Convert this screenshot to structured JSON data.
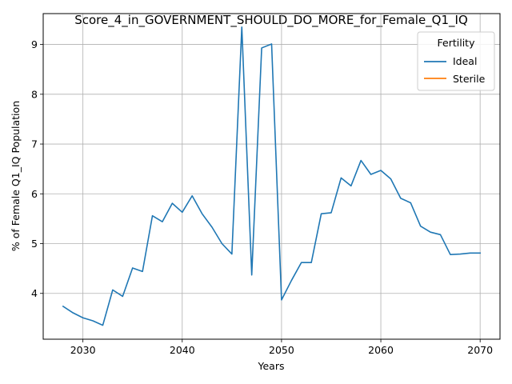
{
  "chart_data": {
    "type": "line",
    "title": "Score_4_in_GOVERNMENT_SHOULD_DO_MORE_for_Female_Q1_IQ",
    "xlabel": "Years",
    "ylabel": "% of Female Q1_IQ Population",
    "xlim": [
      2026,
      2072
    ],
    "ylim": [
      3.08,
      9.62
    ],
    "x_ticks": [
      2030,
      2040,
      2050,
      2060,
      2070
    ],
    "y_ticks": [
      4,
      5,
      6,
      7,
      8,
      9
    ],
    "grid": true,
    "legend": {
      "title": "Fertility",
      "placement": "top-right"
    },
    "series": [
      {
        "name": "Ideal",
        "color": "#1f77b4",
        "x": [
          2028,
          2029,
          2030,
          2031,
          2032,
          2033,
          2034,
          2035,
          2036,
          2037,
          2038,
          2039,
          2040,
          2041,
          2042,
          2043,
          2044,
          2045,
          2046,
          2047,
          2048,
          2049,
          2050,
          2051,
          2052,
          2053,
          2054,
          2055,
          2056,
          2057,
          2058,
          2059,
          2060,
          2061,
          2062,
          2063,
          2064,
          2065,
          2066,
          2067,
          2068,
          2069,
          2070
        ],
        "values": [
          3.74,
          3.61,
          3.51,
          3.45,
          3.36,
          4.07,
          3.94,
          4.51,
          4.44,
          5.56,
          5.44,
          5.81,
          5.63,
          5.96,
          5.6,
          5.33,
          5.0,
          4.79,
          9.35,
          4.37,
          8.93,
          9.01,
          3.87,
          4.26,
          4.62,
          4.62,
          5.6,
          5.62,
          6.32,
          6.16,
          6.67,
          6.39,
          6.47,
          6.3,
          5.91,
          5.82,
          5.35,
          5.23,
          5.18,
          4.78,
          4.79,
          4.81,
          4.81
        ]
      },
      {
        "name": "Sterile",
        "color": "#ff7f0e",
        "x": [],
        "values": []
      }
    ]
  }
}
